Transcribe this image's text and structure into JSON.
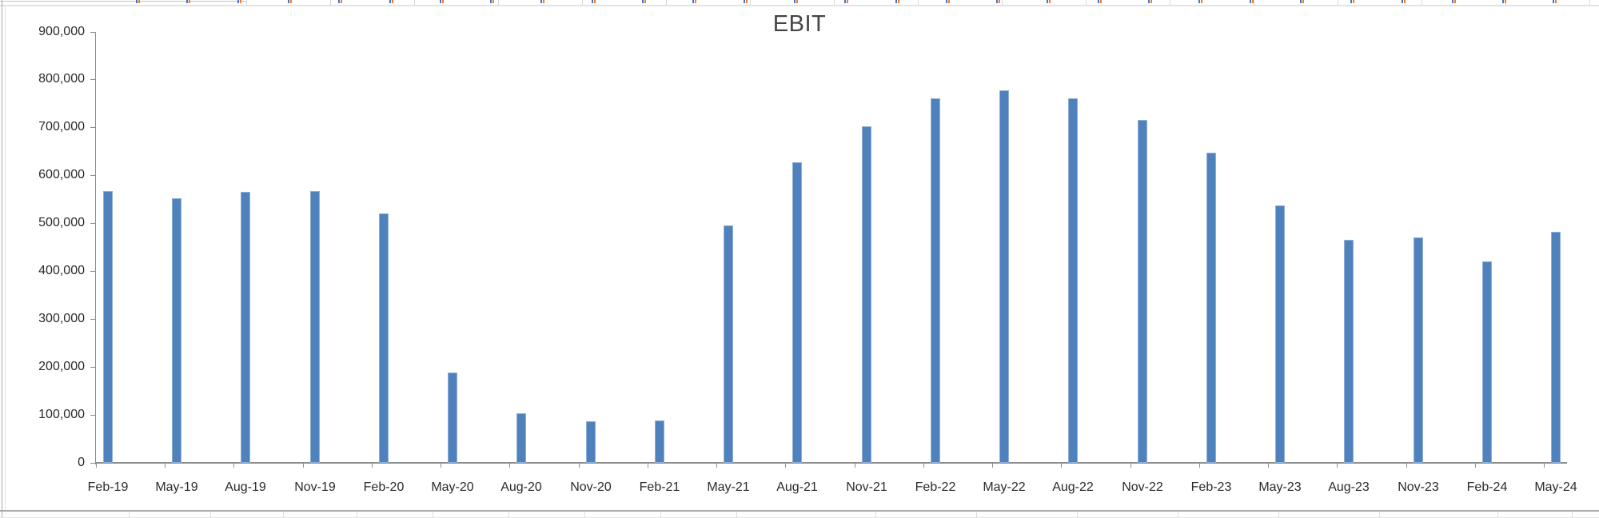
{
  "chart_data": {
    "type": "bar",
    "title": "EBIT",
    "categories": [
      "Feb-19",
      "May-19",
      "Aug-19",
      "Nov-19",
      "Feb-20",
      "May-20",
      "Aug-20",
      "Nov-20",
      "Feb-21",
      "May-21",
      "Aug-21",
      "Nov-21",
      "Feb-22",
      "May-22",
      "Aug-22",
      "Nov-22",
      "Feb-23",
      "May-23",
      "Aug-23",
      "Nov-23",
      "Feb-24",
      "May-24"
    ],
    "series": [
      {
        "name": "EBIT",
        "values": [
          567000,
          553000,
          565000,
          568000,
          520000,
          188000,
          104000,
          87000,
          89000,
          495000,
          628000,
          703000,
          760000,
          778000,
          760000,
          716000,
          647000,
          537000,
          465000,
          470000,
          420000,
          482000
        ]
      }
    ],
    "xlabel": "",
    "ylabel": "",
    "ylim": [
      0,
      900000
    ],
    "ytick_interval": 100000,
    "ytick_labels": [
      "0",
      "100,000",
      "200,000",
      "300,000",
      "400,000",
      "500,000",
      "600,000",
      "700,000",
      "800,000",
      "900,000"
    ],
    "gridlines": false,
    "legend": "none"
  },
  "colors": {
    "bar_fill": "#4f81bd",
    "bar_border": "#8fafd6",
    "axis": "#8e8e8e",
    "tick_label": "#2b2b2b",
    "title": "#454545",
    "spreadsheet_gridline": "#d9d9d9",
    "spreadsheet_gridline_dark": "#c4c4c4",
    "chart_border": "#a9a9a9",
    "chart_border_light": "#e3e3e3",
    "left_column_line": "#a9a9a9",
    "top_mark_blue": "#4472c4",
    "top_mark_orange": "#ed7d31"
  }
}
